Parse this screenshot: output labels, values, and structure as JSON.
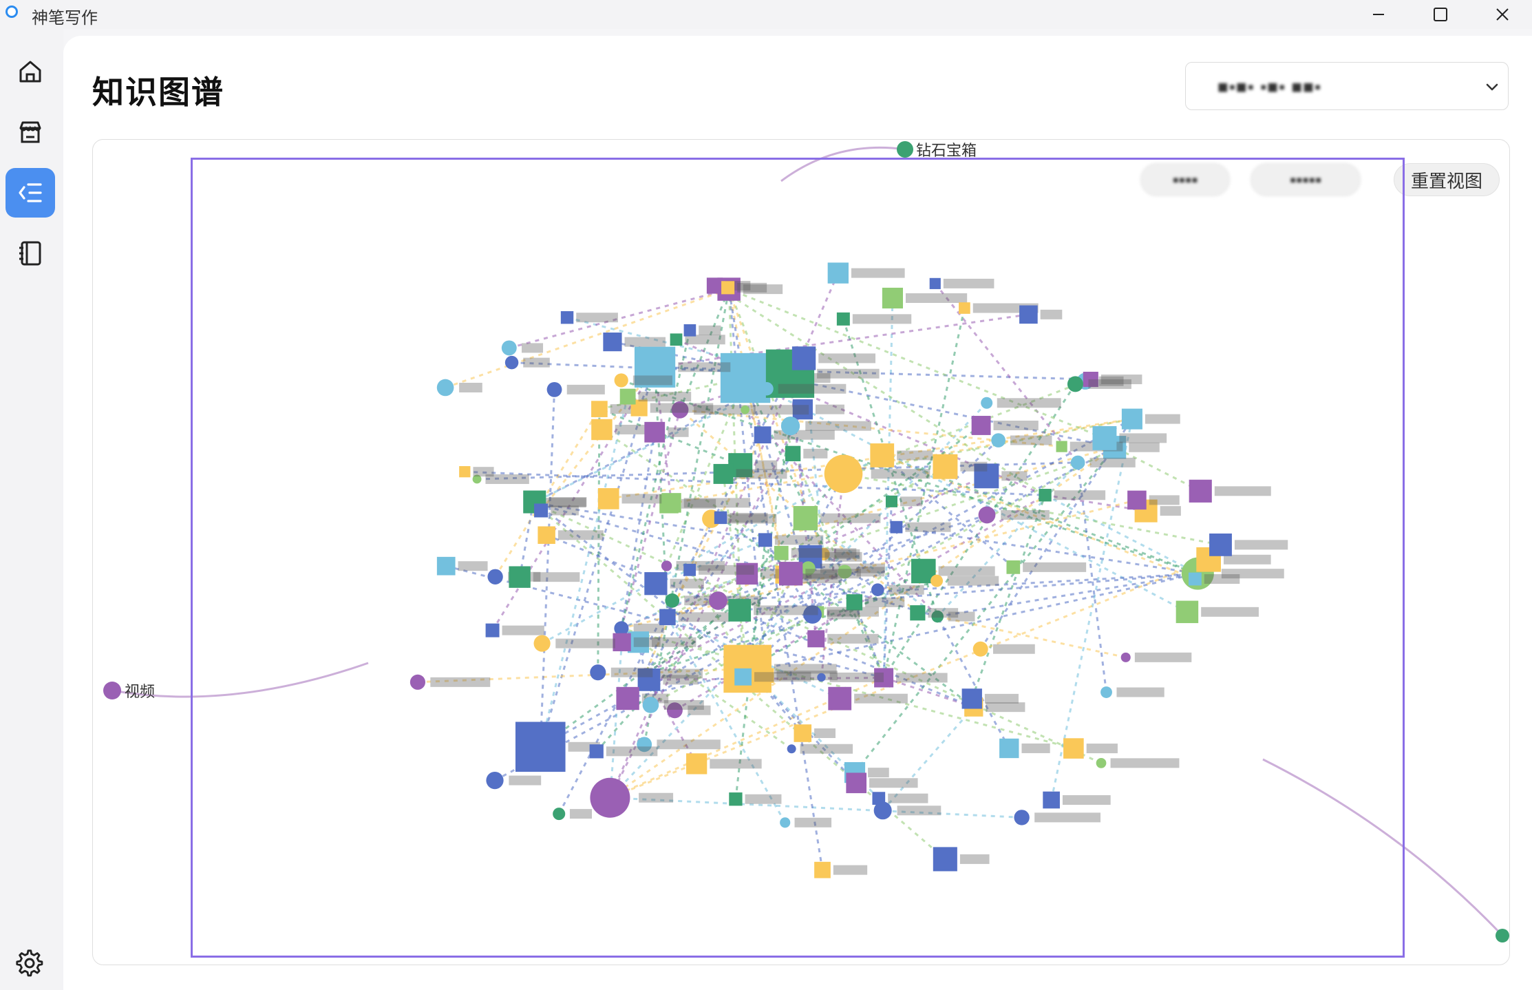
{
  "window": {
    "title": "神笔写作"
  },
  "sidebar": {
    "items": [
      {
        "name": "home",
        "icon": "home-icon",
        "active": false
      },
      {
        "name": "store",
        "icon": "store-icon",
        "active": false
      },
      {
        "name": "knowledge-graph",
        "icon": "indent-list-icon",
        "active": true
      },
      {
        "name": "notebook",
        "icon": "notebook-icon",
        "active": false
      }
    ],
    "settings_icon": "gear-icon"
  },
  "page": {
    "title": "知识图谱"
  },
  "selector": {
    "value": "■▪■▪ ▪■▪ ■■▪",
    "icon": "chevron-down-icon"
  },
  "graph": {
    "toolbar": {
      "button_a": "▪▪▪▪",
      "button_b": "▪▪▪▪▪",
      "reset_label": "重置视图"
    },
    "labels": {
      "top": "钻石宝箱",
      "left": "视频"
    },
    "colors": {
      "blue": "#5470c6",
      "green": "#3ba272",
      "yellow": "#fac858",
      "purple": "#9a60b4",
      "cyan": "#73c0de",
      "lime": "#91cc75",
      "red": "#ee6666",
      "selection": "#8a6ee6",
      "active_nav": "#4b8ff0"
    }
  }
}
